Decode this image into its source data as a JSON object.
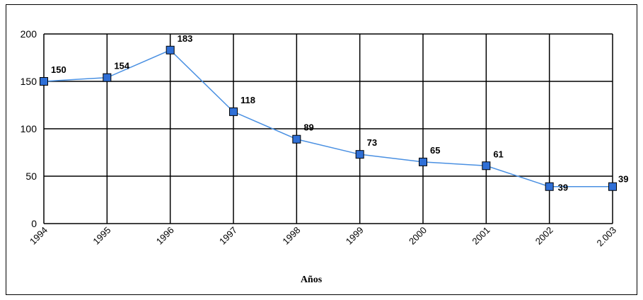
{
  "chart_data": {
    "type": "line",
    "categories": [
      "1994",
      "1995",
      "1996",
      "1997",
      "1998",
      "1999",
      "2000",
      "2001",
      "2002",
      "2.003"
    ],
    "series": [
      {
        "values": [
          150,
          154,
          183,
          118,
          89,
          73,
          65,
          61,
          39,
          39
        ]
      }
    ],
    "data_labels": [
      "150",
      "154",
      "183",
      "118",
      "89",
      "73",
      "65",
      "61",
      "39",
      "39"
    ],
    "xlabel": "Años",
    "ylabel": "",
    "ylim": [
      0,
      200
    ],
    "yticks": [
      0,
      50,
      100,
      150,
      200
    ],
    "grid": true,
    "line_color": "#4a90e2",
    "marker_color": "#2f6fd6",
    "marker_edge": "#000000",
    "grid_color": "#000000"
  }
}
